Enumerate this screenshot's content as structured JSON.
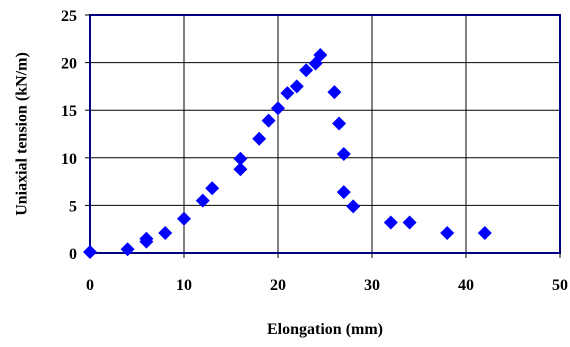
{
  "chart_data": {
    "type": "scatter",
    "title": "",
    "xlabel": "Elongation (mm)",
    "ylabel": "Uniaxial tension (kN/m)",
    "xlim": [
      0,
      50
    ],
    "ylim": [
      0,
      25
    ],
    "x_ticks": [
      0,
      10,
      20,
      30,
      40,
      50
    ],
    "y_ticks": [
      0,
      5,
      10,
      15,
      20,
      25
    ],
    "x_tick_labels": [
      "0",
      "10",
      "20",
      "30",
      "40",
      "50"
    ],
    "y_tick_labels": [
      "0",
      "5",
      "10",
      "15",
      "20",
      "25"
    ],
    "grid": true,
    "legend": "none",
    "marker": "diamond",
    "colors": {
      "marker": "#0000ff",
      "plot_border": "#000080",
      "grid": "#000000",
      "text": "#000000"
    },
    "series": [
      {
        "points": [
          [
            0,
            0.1
          ],
          [
            4,
            0.4
          ],
          [
            6,
            1.2
          ],
          [
            6,
            1.5
          ],
          [
            8,
            2.1
          ],
          [
            10,
            3.6
          ],
          [
            12,
            5.5
          ],
          [
            13,
            6.8
          ],
          [
            16,
            8.8
          ],
          [
            16,
            9.9
          ],
          [
            18,
            12.0
          ],
          [
            19,
            13.9
          ],
          [
            20,
            15.2
          ],
          [
            21,
            16.8
          ],
          [
            22,
            17.5
          ],
          [
            23,
            19.2
          ],
          [
            24,
            19.9
          ],
          [
            24.5,
            20.8
          ],
          [
            26,
            16.9
          ],
          [
            26.5,
            13.6
          ],
          [
            27,
            10.4
          ],
          [
            27,
            6.4
          ],
          [
            28,
            4.9
          ],
          [
            32,
            3.2
          ],
          [
            34,
            3.2
          ],
          [
            38,
            2.1
          ],
          [
            42,
            2.1
          ]
        ]
      }
    ]
  }
}
